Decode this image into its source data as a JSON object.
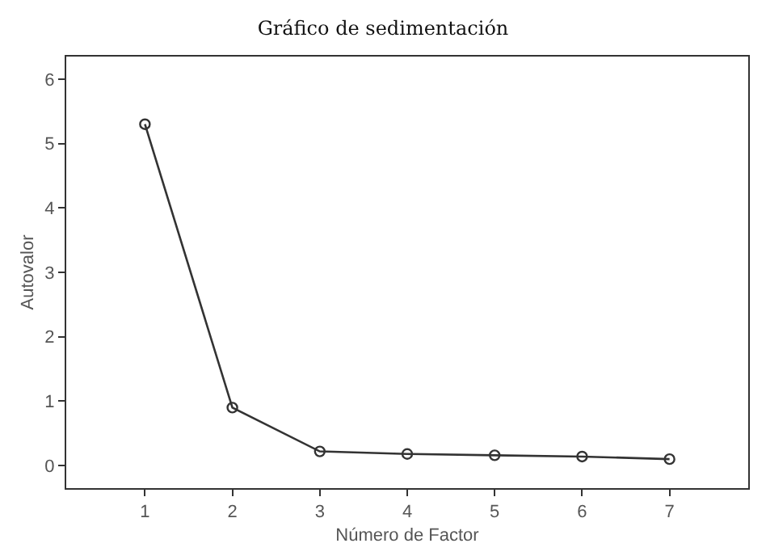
{
  "chart_data": {
    "type": "line",
    "title": "Gráfico de sedimentación",
    "xlabel": "Número de Factor",
    "ylabel": "Autovalor",
    "x": [
      1,
      2,
      3,
      4,
      5,
      6,
      7
    ],
    "series": [
      {
        "color": "#333333",
        "values": [
          5.3,
          0.9,
          0.22,
          0.18,
          0.16,
          0.14,
          0.1
        ]
      }
    ],
    "xlim": [
      0.1,
      7.9
    ],
    "xticks": [
      1,
      2,
      3,
      4,
      5,
      6,
      7
    ],
    "ylim": [
      -0.35,
      6.35
    ],
    "yticks": [
      0,
      1,
      2,
      3,
      4,
      5,
      6
    ],
    "marker": "circle",
    "line_style": "solid",
    "grid": false
  }
}
